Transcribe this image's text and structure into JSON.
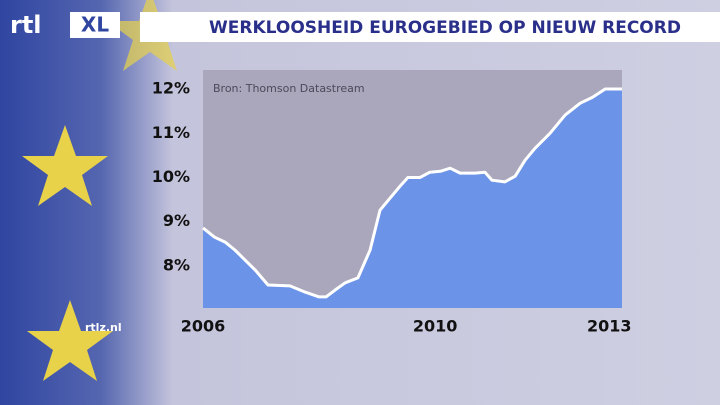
{
  "logo": "rtl",
  "logo_badge": "XL",
  "website": "rtlz.nl",
  "chart_data": {
    "type": "area",
    "title": "WERKLOOSHEID EUROGEBIED OP NIEUW RECORD",
    "source": "Bron: Thomson Datastream",
    "x": [
      2006,
      2006.2,
      2006.38,
      2006.55,
      2006.72,
      2006.9,
      2007.12,
      2007.5,
      2007.76,
      2008,
      2008.12,
      2008.28,
      2008.45,
      2008.67,
      2008.88,
      2009.05,
      2009.22,
      2009.4,
      2009.53,
      2009.74,
      2009.91,
      2010.09,
      2010.26,
      2010.43,
      2010.69,
      2010.86,
      2010.98,
      2011.2,
      2011.38,
      2011.55,
      2011.72,
      2011.98,
      2012.24,
      2012.5,
      2012.71,
      2012.93,
      2013.22
    ],
    "values": [
      8.86,
      8.65,
      8.54,
      8.36,
      8.14,
      7.91,
      7.57,
      7.55,
      7.41,
      7.3,
      7.3,
      7.46,
      7.62,
      7.73,
      8.36,
      9.26,
      9.53,
      9.81,
      10.0,
      10.0,
      10.12,
      10.14,
      10.21,
      10.1,
      10.1,
      10.12,
      9.94,
      9.9,
      10.03,
      10.39,
      10.66,
      11.0,
      11.41,
      11.68,
      11.81,
      12.0,
      12.0
    ],
    "fill_color": "#6b93e8",
    "line_color": "#ffffff",
    "xlim": [
      2006,
      2013.22
    ],
    "xticks": [
      2006,
      2010,
      2013
    ],
    "ylim": [
      7.05,
      12.43
    ],
    "yticks": [
      {
        "value": 8,
        "label": "8%"
      },
      {
        "value": 9,
        "label": "9%"
      },
      {
        "value": 10,
        "label": "10%"
      },
      {
        "value": 11,
        "label": "11%"
      },
      {
        "value": 12,
        "label": "12%"
      }
    ]
  }
}
